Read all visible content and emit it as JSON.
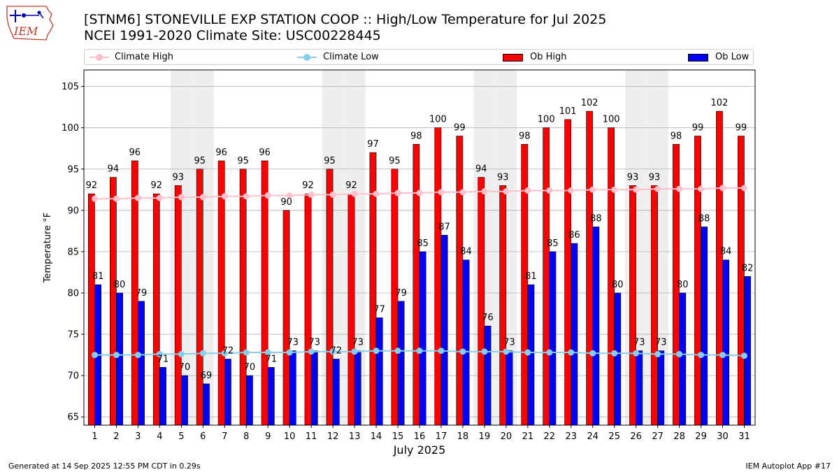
{
  "header": {
    "title_line1": "[STNM6] STONEVILLE EXP STATION COOP :: High/Low Temperature for Jul 2025",
    "title_line2": "NCEI 1991-2020 Climate Site: USC00228445",
    "logo_text": "IEM"
  },
  "footer": {
    "left": "Generated at 14 Sep 2025 12:55 PM CDT in 0.29s",
    "right": "IEM Autoplot App #17"
  },
  "colors": {
    "ob_high": "#ff0000",
    "ob_low": "#0000ff",
    "climate_high": "#ffc0cb",
    "climate_low": "#87ceeb",
    "weekend_shade": "#eeeeee",
    "grid": "#b0b0b0"
  },
  "chart_data": {
    "type": "bar",
    "xlabel": "July 2025",
    "ylabel": "Temperature °F",
    "ylim": [
      64,
      107
    ],
    "yticks": [
      65,
      70,
      75,
      80,
      85,
      90,
      95,
      100,
      105
    ],
    "grid": "horizontal",
    "legend_placement": "top",
    "categories": [
      "1",
      "2",
      "3",
      "4",
      "5",
      "6",
      "7",
      "8",
      "9",
      "10",
      "11",
      "12",
      "13",
      "14",
      "15",
      "16",
      "17",
      "18",
      "19",
      "20",
      "21",
      "22",
      "23",
      "24",
      "25",
      "26",
      "27",
      "28",
      "29",
      "30",
      "31"
    ],
    "shaded_days": [
      5,
      6,
      12,
      13,
      19,
      20,
      26,
      27
    ],
    "series": [
      {
        "name": "Ob High",
        "kind": "bar",
        "values": [
          92,
          94,
          96,
          92,
          93,
          95,
          96,
          95,
          96,
          90,
          92,
          95,
          92,
          97,
          95,
          98,
          100,
          99,
          94,
          93,
          98,
          100,
          101,
          102,
          100,
          93,
          93,
          98,
          99,
          102,
          99
        ]
      },
      {
        "name": "Ob Low",
        "kind": "bar",
        "values": [
          81,
          80,
          79,
          71,
          70,
          69,
          72,
          70,
          71,
          73,
          73,
          72,
          73,
          77,
          79,
          85,
          87,
          84,
          76,
          73,
          81,
          85,
          86,
          88,
          80,
          73,
          73,
          80,
          88,
          84,
          82
        ]
      },
      {
        "name": "Climate High",
        "kind": "line",
        "values": [
          91.4,
          91.4,
          91.5,
          91.5,
          91.6,
          91.6,
          91.7,
          91.7,
          91.8,
          91.8,
          91.9,
          91.9,
          92.0,
          92.0,
          92.1,
          92.1,
          92.2,
          92.2,
          92.3,
          92.3,
          92.4,
          92.4,
          92.4,
          92.5,
          92.5,
          92.5,
          92.6,
          92.6,
          92.6,
          92.7,
          92.7
        ]
      },
      {
        "name": "Climate Low",
        "kind": "line",
        "values": [
          72.5,
          72.5,
          72.5,
          72.6,
          72.6,
          72.7,
          72.7,
          72.8,
          72.8,
          72.8,
          72.9,
          72.9,
          72.9,
          73.0,
          73.0,
          73.0,
          73.0,
          72.9,
          72.9,
          72.9,
          72.8,
          72.8,
          72.8,
          72.7,
          72.7,
          72.7,
          72.6,
          72.6,
          72.5,
          72.5,
          72.4
        ]
      }
    ]
  }
}
